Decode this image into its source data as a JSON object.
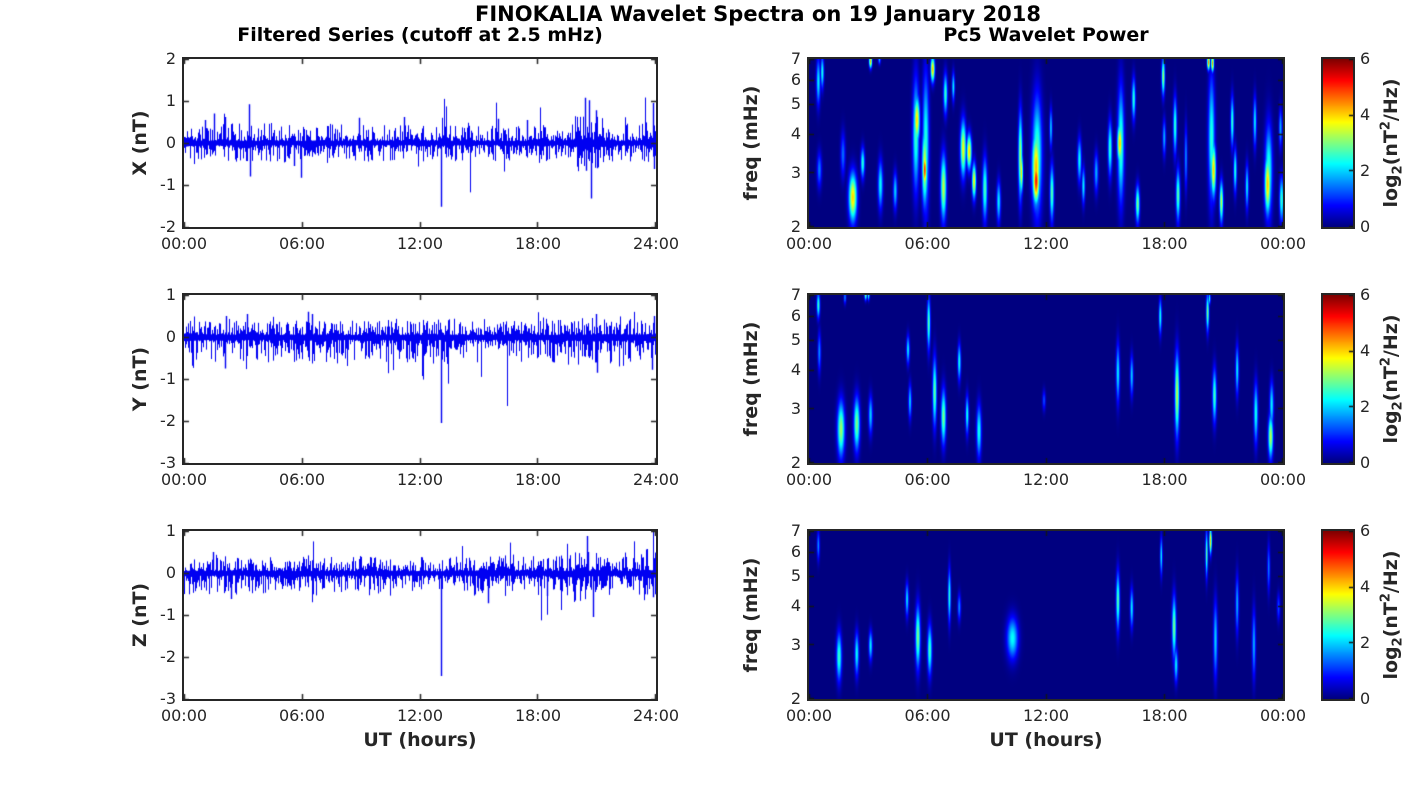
{
  "title": "FINOKALIA Wavelet Spectra on 19 January 2018",
  "left_column": {
    "title": "Filtered Series (cutoff at 2.5 mHz)",
    "xlabel": "UT (hours)"
  },
  "right_column": {
    "title": "Pc5 Wavelet Power",
    "xlabel": "UT (hours)"
  },
  "colorbar": {
    "label": "log2(nT^2/Hz)",
    "label_parts": [
      "log",
      "2",
      "(nT",
      "2",
      "/Hz)"
    ],
    "ticks": [
      0,
      2,
      4,
      6
    ],
    "range": [
      0,
      6
    ],
    "colormap": "jet"
  },
  "chart_data": [
    {
      "id": "x-filtered",
      "type": "line",
      "title": "Filtered Series (cutoff at 2.5 mHz)",
      "ylabel": "X (nT)",
      "ylim": [
        -2,
        2
      ],
      "yticks": [
        2,
        1,
        0,
        -1,
        -2
      ],
      "xlim": [
        0,
        24
      ],
      "xticks_hours": [
        0,
        6,
        12,
        18,
        24
      ],
      "xtick_labels": [
        "00:00",
        "06:00",
        "12:00",
        "18:00",
        "24:00"
      ],
      "line_color": "#0000f2",
      "noise": {
        "std": 0.155,
        "down_bias": 1.0,
        "envelope": [
          [
            0,
            0.6,
            1.35
          ],
          [
            19.8,
            21.4,
            1.6
          ],
          [
            23.4,
            24,
            1.45
          ]
        ]
      },
      "spikes": [
        [
          1.05,
          0.55
        ],
        [
          1.55,
          0.7
        ],
        [
          2.1,
          0.62
        ],
        [
          3.3,
          0.92
        ],
        [
          3.35,
          -0.8
        ],
        [
          5.6,
          -0.55
        ],
        [
          5.95,
          -0.83
        ],
        [
          8.9,
          0.6
        ],
        [
          11.2,
          0.62
        ],
        [
          13.1,
          -1.52
        ],
        [
          16.0,
          0.58
        ],
        [
          17.5,
          0.55
        ],
        [
          20.45,
          1.08
        ],
        [
          20.5,
          -0.66
        ],
        [
          20.65,
          1.02
        ],
        [
          20.75,
          -1.32
        ],
        [
          21.0,
          0.78
        ],
        [
          21.05,
          -0.6
        ],
        [
          23.9,
          0.95
        ],
        [
          23.95,
          -0.62
        ]
      ]
    },
    {
      "id": "x-wavelet",
      "type": "heatmap",
      "title": "Pc5 Wavelet Power",
      "ylabel": "freq (mHz)",
      "ylim": [
        2,
        7
      ],
      "yscale": "log",
      "yticks": [
        7,
        6,
        5,
        4,
        3,
        2
      ],
      "xlim": [
        0,
        24
      ],
      "xticks_hours": [
        0,
        6,
        12,
        18,
        24
      ],
      "xtick_labels": [
        "00:00",
        "06:00",
        "12:00",
        "18:00",
        "00:00"
      ],
      "clim": [
        0,
        6
      ],
      "blobs": [
        [
          0.45,
          4.8,
          7.3,
          2.2,
          0.1
        ],
        [
          0.65,
          5.5,
          7.35,
          2.4,
          0.08
        ],
        [
          0.5,
          2.6,
          3.6,
          1.5,
          0.12
        ],
        [
          1.7,
          2.8,
          4.2,
          1.4,
          0.12
        ],
        [
          2.2,
          2.0,
          3.1,
          4.0,
          0.2
        ],
        [
          2.7,
          2.8,
          3.7,
          2.5,
          0.1
        ],
        [
          3.1,
          6.5,
          7.35,
          4.2,
          0.07
        ],
        [
          3.6,
          2.2,
          3.4,
          2.3,
          0.12
        ],
        [
          3.55,
          6.7,
          7.3,
          1.8,
          0.06
        ],
        [
          4.35,
          2.2,
          3.1,
          2.0,
          0.1
        ],
        [
          5.45,
          3.6,
          5.5,
          4.0,
          0.14
        ],
        [
          5.4,
          2.4,
          6.6,
          2.6,
          0.16
        ],
        [
          5.85,
          2.6,
          3.6,
          5.0,
          0.1
        ],
        [
          5.85,
          2.2,
          4.5,
          3.6,
          0.14
        ],
        [
          5.9,
          2.0,
          7.0,
          2.5,
          0.16
        ],
        [
          6.25,
          5.8,
          7.3,
          4.1,
          0.1
        ],
        [
          6.8,
          2.0,
          3.6,
          3.4,
          0.14
        ],
        [
          6.9,
          4.5,
          6.5,
          2.6,
          0.1
        ],
        [
          7.3,
          5.0,
          6.5,
          2.2,
          0.07
        ],
        [
          7.8,
          2.8,
          4.6,
          3.7,
          0.14
        ],
        [
          8.1,
          3.0,
          4.1,
          4.0,
          0.12
        ],
        [
          8.35,
          2.4,
          3.3,
          3.8,
          0.1
        ],
        [
          8.9,
          2.0,
          3.5,
          2.7,
          0.12
        ],
        [
          9.6,
          2.0,
          2.9,
          2.2,
          0.1
        ],
        [
          10.7,
          2.3,
          5.0,
          3.3,
          0.1
        ],
        [
          10.75,
          2.5,
          3.6,
          3.9,
          0.08
        ],
        [
          11.5,
          2.3,
          3.45,
          5.2,
          0.16
        ],
        [
          11.5,
          2.2,
          4.4,
          4.2,
          0.2
        ],
        [
          11.55,
          2.0,
          5.8,
          2.8,
          0.24
        ],
        [
          12.3,
          2.0,
          3.3,
          2.8,
          0.1
        ],
        [
          12.25,
          3.5,
          5.0,
          2.0,
          0.07
        ],
        [
          13.7,
          2.7,
          4.0,
          2.3,
          0.1
        ],
        [
          13.9,
          2.3,
          3.2,
          2.2,
          0.08
        ],
        [
          14.55,
          2.5,
          3.6,
          1.8,
          0.1
        ],
        [
          15.25,
          2.8,
          4.6,
          2.6,
          0.1
        ],
        [
          15.75,
          3.1,
          4.5,
          4.1,
          0.13
        ],
        [
          15.8,
          2.2,
          6.2,
          2.7,
          0.16
        ],
        [
          16.45,
          4.3,
          6.3,
          2.5,
          0.09
        ],
        [
          16.65,
          2.0,
          2.8,
          3.0,
          0.1
        ],
        [
          17.95,
          5.2,
          7.3,
          3.2,
          0.08
        ],
        [
          18.0,
          3.3,
          4.6,
          1.8,
          0.08
        ],
        [
          18.55,
          3.3,
          5.5,
          2.6,
          0.09
        ],
        [
          18.7,
          2.0,
          3.2,
          2.8,
          0.1
        ],
        [
          19.1,
          2.5,
          4.5,
          1.6,
          0.07
        ],
        [
          20.25,
          6.4,
          7.35,
          4.5,
          0.07
        ],
        [
          20.45,
          6.3,
          7.35,
          4.3,
          0.07
        ],
        [
          20.5,
          2.4,
          3.9,
          4.0,
          0.12
        ],
        [
          20.4,
          2.2,
          6.8,
          2.5,
          0.16
        ],
        [
          20.9,
          2.0,
          2.9,
          3.4,
          0.09
        ],
        [
          21.45,
          3.5,
          5.5,
          2.6,
          0.08
        ],
        [
          21.6,
          2.5,
          3.7,
          2.5,
          0.08
        ],
        [
          22.2,
          2.2,
          3.3,
          2.2,
          0.08
        ],
        [
          22.6,
          3.5,
          5.5,
          2.2,
          0.08
        ],
        [
          23.25,
          2.1,
          3.6,
          4.1,
          0.15
        ],
        [
          23.3,
          2.0,
          4.6,
          2.6,
          0.18
        ],
        [
          23.9,
          3.5,
          5.0,
          1.8,
          0.08
        ],
        [
          23.95,
          2.0,
          3.0,
          2.6,
          0.1
        ]
      ]
    },
    {
      "id": "y-filtered",
      "type": "line",
      "ylabel": "Y (nT)",
      "ylim": [
        -3,
        1
      ],
      "yticks": [
        1,
        0,
        -1,
        -2,
        -3
      ],
      "xlim": [
        0,
        24
      ],
      "xticks_hours": [
        0,
        6,
        12,
        18,
        24
      ],
      "xtick_labels": [
        "00:00",
        "06:00",
        "12:00",
        "18:00",
        "24:00"
      ],
      "line_color": "#0000f2",
      "noise": {
        "std": 0.15,
        "down_bias": 1.4,
        "envelope": [
          [
            0,
            0.6,
            1.15
          ],
          [
            19.5,
            24,
            1.15
          ]
        ]
      },
      "spikes": [
        [
          2.1,
          -0.75
        ],
        [
          2.15,
          0.5
        ],
        [
          3.2,
          0.55
        ],
        [
          6.3,
          0.6
        ],
        [
          6.5,
          0.55
        ],
        [
          13.1,
          -2.05
        ],
        [
          18.8,
          -0.6
        ],
        [
          21.0,
          0.55
        ],
        [
          21.05,
          -0.85
        ],
        [
          23.85,
          -0.78
        ],
        [
          23.95,
          0.5
        ]
      ]
    },
    {
      "id": "y-wavelet",
      "type": "heatmap",
      "ylabel": "freq (mHz)",
      "ylim": [
        2,
        7
      ],
      "yscale": "log",
      "yticks": [
        7,
        6,
        5,
        4,
        3,
        2
      ],
      "xlim": [
        0,
        24
      ],
      "xticks_hours": [
        0,
        6,
        12,
        18,
        24
      ],
      "xtick_labels": [
        "00:00",
        "06:00",
        "12:00",
        "18:00",
        "00:00"
      ],
      "clim": [
        0,
        6
      ],
      "blobs": [
        [
          0.45,
          5.8,
          7.3,
          2.6,
          0.08
        ],
        [
          0.5,
          3.8,
          5.5,
          1.6,
          0.08
        ],
        [
          1.6,
          2.0,
          3.3,
          3.2,
          0.18
        ],
        [
          1.8,
          6.5,
          7.3,
          1.6,
          0.06
        ],
        [
          2.4,
          2.1,
          3.4,
          3.0,
          0.15
        ],
        [
          2.85,
          6.7,
          7.35,
          3.0,
          0.06
        ],
        [
          3.0,
          6.7,
          7.35,
          2.6,
          0.05
        ],
        [
          3.1,
          2.4,
          3.4,
          2.0,
          0.1
        ],
        [
          5.0,
          4.1,
          5.3,
          2.2,
          0.08
        ],
        [
          5.1,
          2.7,
          3.7,
          2.0,
          0.08
        ],
        [
          6.05,
          4.5,
          7.2,
          2.8,
          0.08
        ],
        [
          6.35,
          2.5,
          4.6,
          2.9,
          0.1
        ],
        [
          6.8,
          2.2,
          3.6,
          3.0,
          0.12
        ],
        [
          7.6,
          3.6,
          5.0,
          2.4,
          0.08
        ],
        [
          8.0,
          2.4,
          3.4,
          2.4,
          0.08
        ],
        [
          8.6,
          2.0,
          3.2,
          2.4,
          0.12
        ],
        [
          11.9,
          2.9,
          3.5,
          1.2,
          0.08
        ],
        [
          15.65,
          3.0,
          5.1,
          2.2,
          0.09
        ],
        [
          16.35,
          3.2,
          4.6,
          2.0,
          0.08
        ],
        [
          17.8,
          5.1,
          7.0,
          2.4,
          0.07
        ],
        [
          18.65,
          2.3,
          4.8,
          3.4,
          0.11
        ],
        [
          20.2,
          5.2,
          7.3,
          3.0,
          0.07
        ],
        [
          20.3,
          6.5,
          7.2,
          2.4,
          0.05
        ],
        [
          20.55,
          2.6,
          4.2,
          2.7,
          0.1
        ],
        [
          21.7,
          3.2,
          5.0,
          2.2,
          0.08
        ],
        [
          22.65,
          2.2,
          3.8,
          2.4,
          0.1
        ],
        [
          23.4,
          2.0,
          2.95,
          3.4,
          0.12
        ],
        [
          23.45,
          2.5,
          3.8,
          2.2,
          0.1
        ]
      ]
    },
    {
      "id": "z-filtered",
      "type": "line",
      "ylabel": "Z (nT)",
      "ylim": [
        -3,
        1
      ],
      "yticks": [
        1,
        0,
        -1,
        -2,
        -3
      ],
      "xlim": [
        0,
        24
      ],
      "xticks_hours": [
        0,
        6,
        12,
        18,
        24
      ],
      "xtick_labels": [
        "00:00",
        "06:00",
        "12:00",
        "18:00",
        "24:00"
      ],
      "line_color": "#0000f2",
      "noise": {
        "std": 0.135,
        "down_bias": 1.3,
        "envelope": [
          [
            19.8,
            21.4,
            1.35
          ],
          [
            23.2,
            24,
            1.25
          ]
        ]
      },
      "spikes": [
        [
          1.5,
          0.5
        ],
        [
          2.4,
          -0.62
        ],
        [
          13.1,
          -2.45
        ],
        [
          15.5,
          -0.72
        ],
        [
          18.5,
          -0.55
        ],
        [
          20.55,
          0.88
        ],
        [
          20.6,
          0.5
        ],
        [
          20.85,
          -1.05
        ],
        [
          23.9,
          -0.58
        ]
      ]
    },
    {
      "id": "z-wavelet",
      "type": "heatmap",
      "ylabel": "freq (mHz)",
      "ylim": [
        2,
        7
      ],
      "yscale": "log",
      "yticks": [
        7,
        6,
        5,
        4,
        3,
        2
      ],
      "xlim": [
        0,
        24
      ],
      "xticks_hours": [
        0,
        6,
        12,
        18,
        24
      ],
      "xtick_labels": [
        "00:00",
        "06:00",
        "12:00",
        "18:00",
        "00:00"
      ],
      "clim": [
        0,
        6
      ],
      "blobs": [
        [
          0.45,
          5.5,
          7.2,
          1.6,
          0.07
        ],
        [
          1.5,
          2.2,
          3.4,
          2.6,
          0.13
        ],
        [
          2.4,
          2.3,
          3.4,
          2.3,
          0.1
        ],
        [
          3.1,
          2.6,
          3.4,
          2.2,
          0.09
        ],
        [
          4.95,
          3.6,
          4.9,
          2.1,
          0.08
        ],
        [
          5.5,
          2.4,
          4.2,
          3.0,
          0.12
        ],
        [
          6.1,
          2.3,
          3.6,
          2.7,
          0.11
        ],
        [
          7.1,
          3.4,
          5.5,
          2.5,
          0.07
        ],
        [
          7.6,
          3.5,
          4.5,
          1.6,
          0.08
        ],
        [
          10.3,
          2.6,
          3.8,
          2.3,
          0.28
        ],
        [
          15.65,
          3.2,
          5.4,
          2.8,
          0.09
        ],
        [
          16.35,
          3.3,
          4.7,
          2.2,
          0.08
        ],
        [
          17.85,
          4.9,
          6.9,
          2.2,
          0.06
        ],
        [
          18.5,
          2.6,
          4.5,
          3.0,
          0.1
        ],
        [
          18.6,
          2.2,
          3.0,
          2.2,
          0.09
        ],
        [
          20.15,
          4.8,
          7.3,
          2.8,
          0.06
        ],
        [
          20.35,
          5.8,
          7.35,
          4.0,
          0.06
        ],
        [
          20.6,
          2.2,
          4.4,
          2.0,
          0.1
        ],
        [
          21.7,
          3.1,
          5.3,
          1.8,
          0.08
        ],
        [
          22.55,
          2.2,
          4.1,
          1.8,
          0.09
        ],
        [
          23.3,
          4.3,
          6.6,
          1.5,
          0.07
        ],
        [
          23.8,
          3.5,
          4.5,
          1.2,
          0.08
        ]
      ]
    }
  ]
}
